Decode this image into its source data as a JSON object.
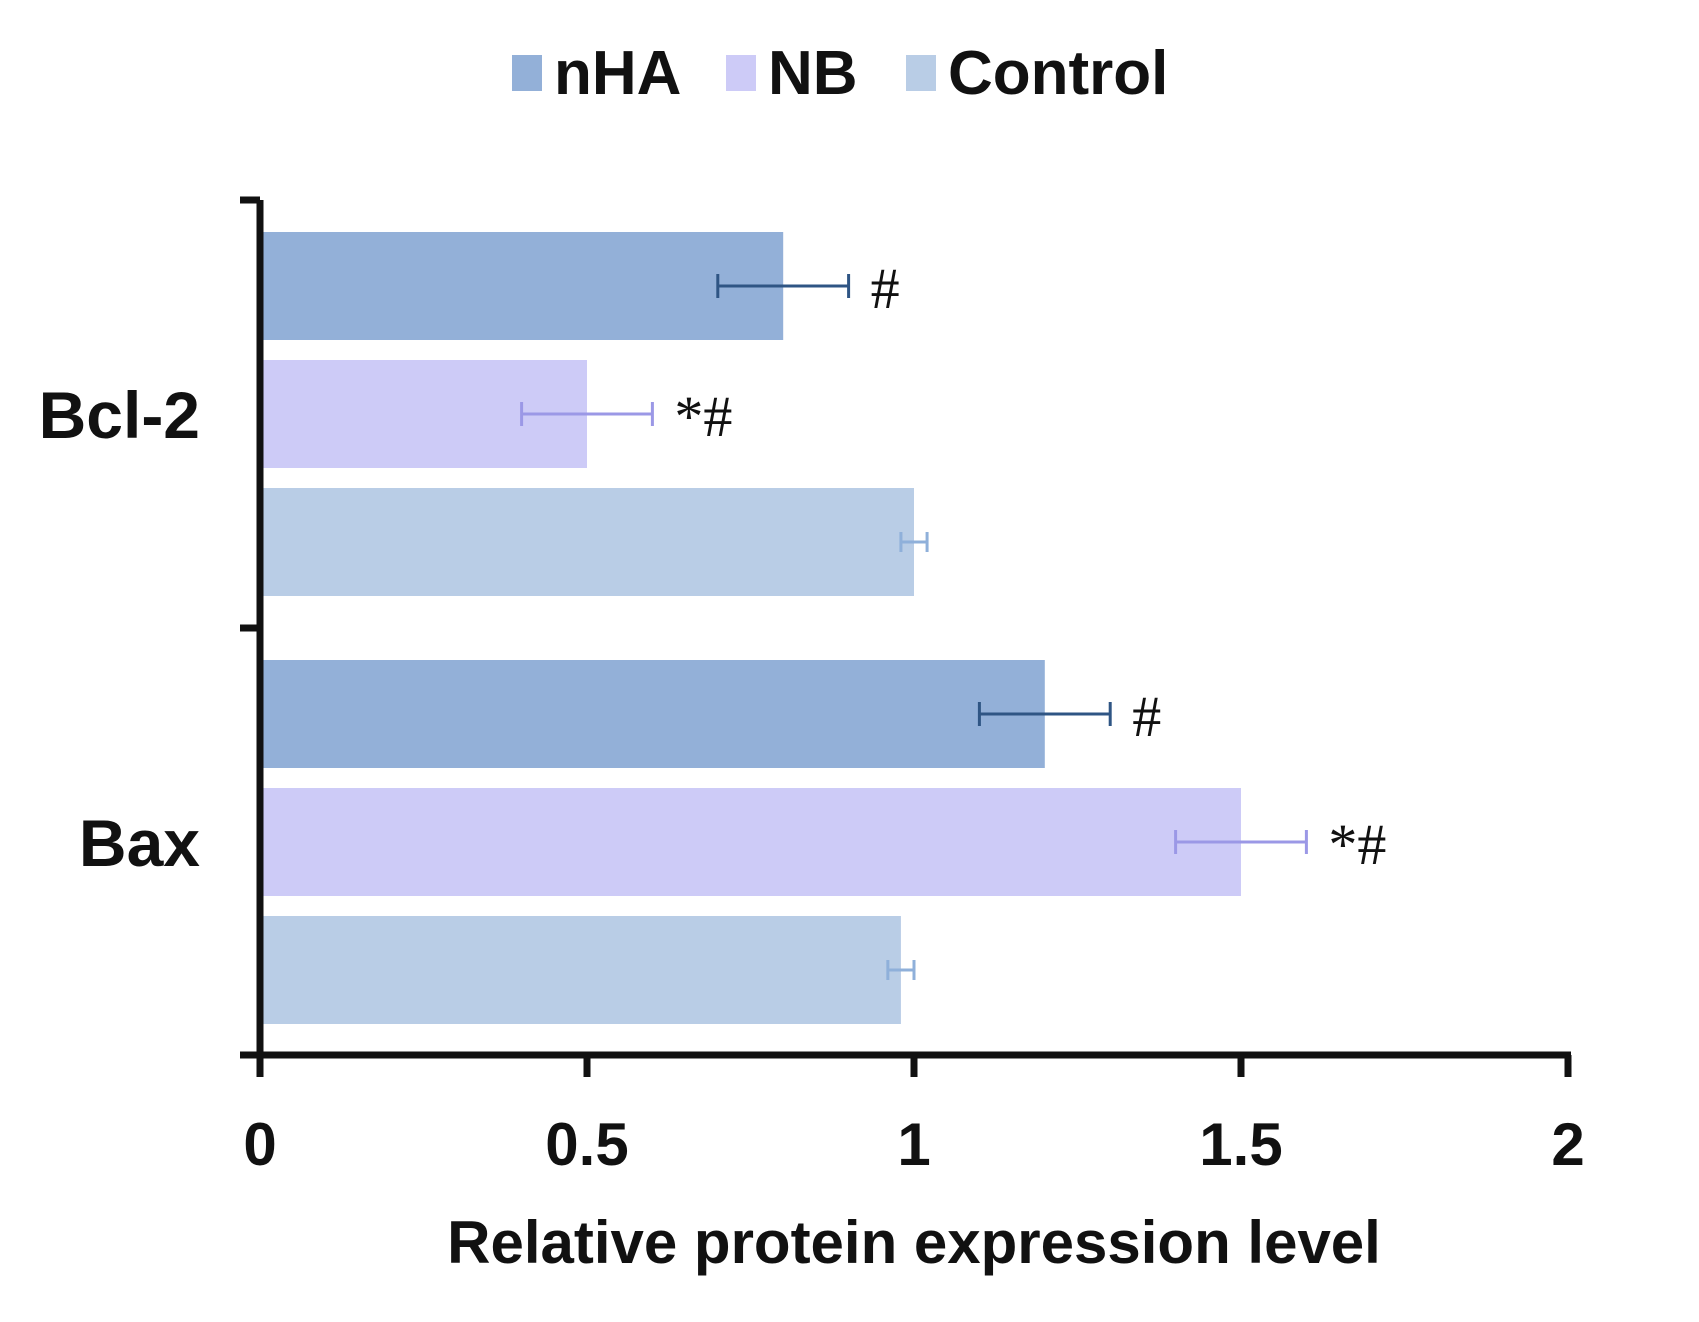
{
  "chart_data": {
    "type": "bar",
    "orientation": "horizontal",
    "categories": [
      "Bcl-2",
      "Bax"
    ],
    "series": [
      {
        "name": "nHA",
        "color": "#93b0d8",
        "error_color": "#2f5584",
        "values": [
          0.8,
          1.2
        ],
        "errors": [
          0.1,
          0.1
        ],
        "annotations": [
          "#",
          "#"
        ]
      },
      {
        "name": "NB",
        "color": "#cdcbf7",
        "error_color": "#9b98e6",
        "values": [
          0.5,
          1.5
        ],
        "errors": [
          0.1,
          0.1
        ],
        "annotations": [
          "*#",
          "*#"
        ]
      },
      {
        "name": "Control",
        "color": "#b9cde6",
        "error_color": "#8fb0da",
        "values": [
          1.0,
          0.98
        ],
        "errors": [
          0.02,
          0.02
        ],
        "annotations": [
          "",
          ""
        ]
      }
    ],
    "xlabel": "Relative protein expression level",
    "ylabel": "",
    "xlim": [
      0,
      2
    ],
    "xticks": [
      0,
      0.5,
      1,
      1.5,
      2
    ],
    "xtick_labels": [
      "0",
      "0.5",
      "1",
      "1.5",
      "2"
    ],
    "legend_position": "top-center",
    "grid": false
  }
}
